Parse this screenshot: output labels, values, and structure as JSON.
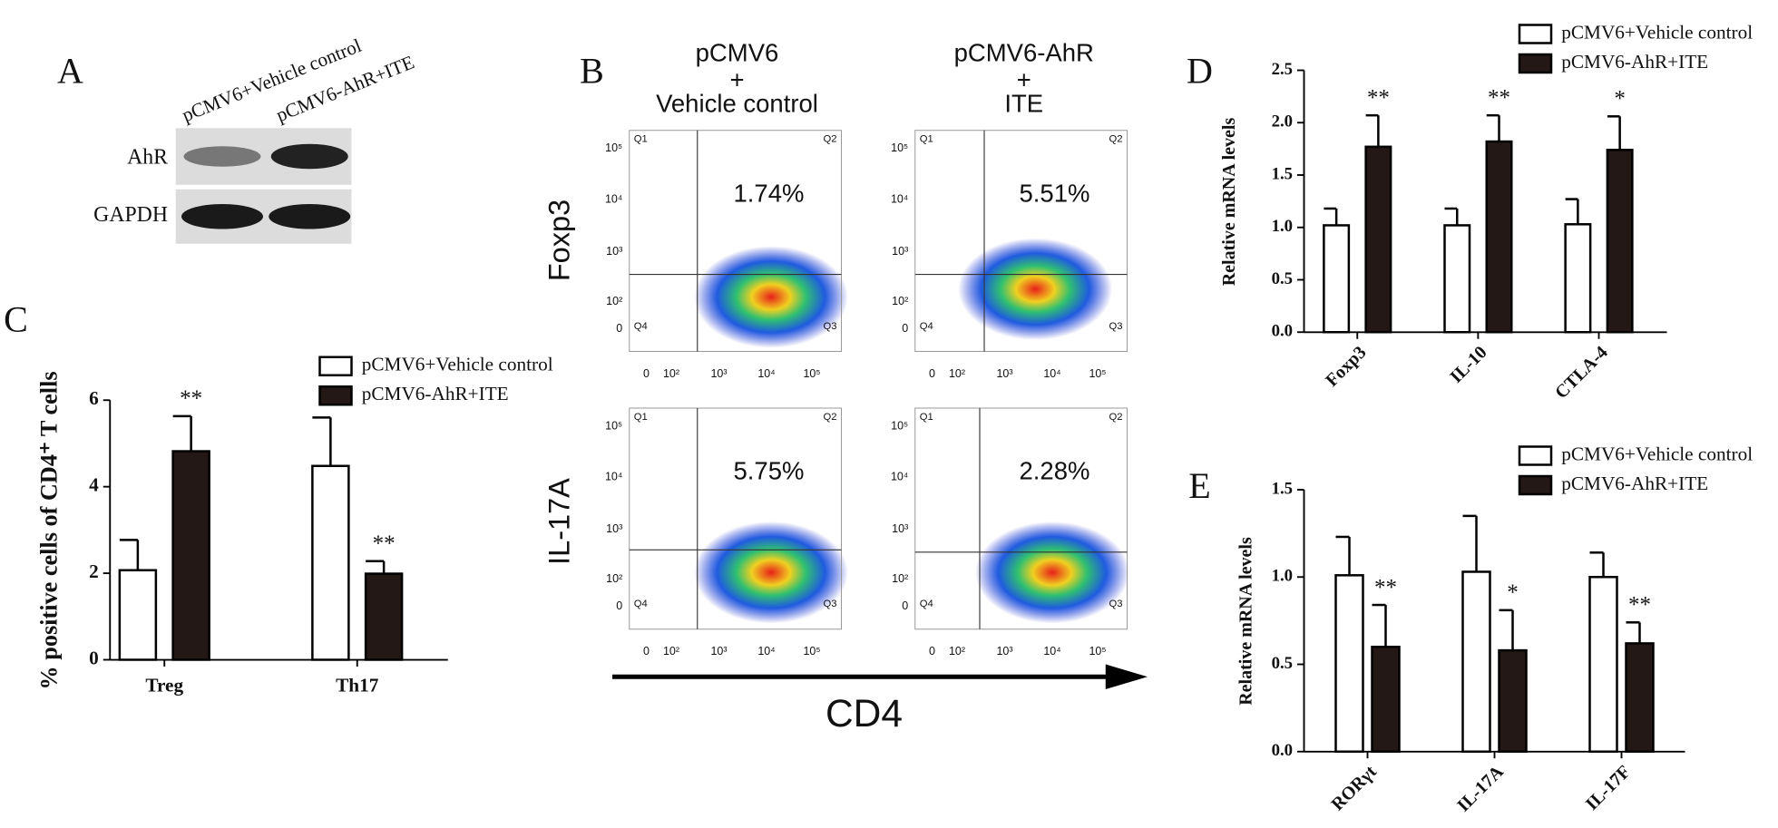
{
  "panel_a": {
    "letter": "A",
    "lanes": [
      "pCMV6+Vehicle control",
      "pCMV6-AhR+ITE"
    ],
    "rows": [
      "AhR",
      "GAPDH"
    ]
  },
  "panel_b": {
    "letter": "B",
    "columns": [
      [
        "pCMV6",
        "+",
        "Vehicle control"
      ],
      [
        "pCMV6-AhR",
        "+",
        "ITE"
      ]
    ],
    "rows": [
      "Foxp3",
      "IL-17A"
    ],
    "quadrants": [
      "Q1",
      "Q2",
      "Q3",
      "Q4"
    ],
    "percentages": [
      [
        "1.74%",
        "5.51%"
      ],
      [
        "5.75%",
        "2.28%"
      ]
    ],
    "y_ticks": [
      "10⁵",
      "10⁴",
      "10³",
      "10²",
      "0"
    ],
    "x_ticks": [
      "0",
      "10²",
      "10³",
      "10⁴",
      "10⁵"
    ],
    "x_label": "CD4"
  },
  "chart_data": [
    {
      "type": "bar",
      "panel": "C",
      "ylabel": "% positive cells of CD4⁺ T cells",
      "categories": [
        "Treg",
        "Th17"
      ],
      "series": [
        {
          "name": "pCMV6+Vehicle control",
          "color": "#ffffff",
          "values": [
            2.07,
            4.48
          ],
          "errors": [
            0.7,
            1.12
          ]
        },
        {
          "name": "pCMV6-AhR+ITE",
          "color": "#231815",
          "values": [
            4.82,
            1.99
          ],
          "errors": [
            0.81,
            0.29
          ],
          "significance": [
            "**",
            "**"
          ]
        }
      ],
      "ylim": [
        0,
        6
      ],
      "yticks": [
        0,
        2,
        4,
        6
      ]
    },
    {
      "type": "bar",
      "panel": "D",
      "ylabel": "Relative mRNA levels",
      "categories": [
        "Foxp3",
        "IL-10",
        "CTLA-4"
      ],
      "series": [
        {
          "name": "pCMV6+Vehicle control",
          "color": "#ffffff",
          "values": [
            1.02,
            1.02,
            1.03
          ],
          "errors": [
            0.16,
            0.16,
            0.24
          ]
        },
        {
          "name": "pCMV6-AhR+ITE",
          "color": "#231815",
          "values": [
            1.77,
            1.82,
            1.74
          ],
          "errors": [
            0.3,
            0.25,
            0.32
          ],
          "significance": [
            "**",
            "**",
            "*"
          ]
        }
      ],
      "ylim": [
        0,
        2.5
      ],
      "yticks": [
        {
          "value": 0,
          "label": "0.0"
        },
        0.5,
        {
          "value": 1,
          "label": "1.0"
        },
        1.5,
        {
          "value": 2,
          "label": "2.0"
        },
        2.5
      ]
    },
    {
      "type": "bar",
      "panel": "E",
      "ylabel": "Relative mRNA levels",
      "categories": [
        "RORγt",
        "IL-17A",
        "IL-17F"
      ],
      "series": [
        {
          "name": "pCMV6+Vehicle control",
          "color": "#ffffff",
          "values": [
            1.01,
            1.03,
            1.0
          ],
          "errors": [
            0.22,
            0.32,
            0.14
          ]
        },
        {
          "name": "pCMV6-AhR+ITE",
          "color": "#231815",
          "values": [
            0.6,
            0.58,
            0.62
          ],
          "errors": [
            0.24,
            0.23,
            0.12
          ],
          "significance": [
            "**",
            "*",
            "**"
          ]
        }
      ],
      "ylim": [
        0,
        1.5
      ],
      "yticks": [
        {
          "value": 0,
          "label": "0.0"
        },
        0.5,
        {
          "value": 1,
          "label": "1.0"
        },
        1.5
      ]
    }
  ]
}
